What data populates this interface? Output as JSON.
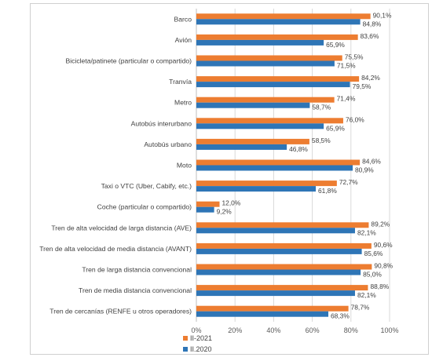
{
  "chart_data": {
    "type": "bar",
    "orientation": "horizontal",
    "categories": [
      "Barco",
      "Avión",
      "Bicicleta/patinete (particular o compartido)",
      "Tranvía",
      "Metro",
      "Autobús interurbano",
      "Autobús urbano",
      "Moto",
      "Taxi o VTC (Uber, Cabify, etc.)",
      "Coche (particular o compartido)",
      "Tren de alta velocidad de larga distancia (AVE)",
      "Tren de alta velocidad de media distancia (AVANT)",
      "Tren de larga distancia convencional",
      "Tren de media distancia convencional",
      "Tren de cercanías (RENFE u otros operadores)"
    ],
    "series": [
      {
        "name": "II-2021",
        "color": "#ED7D31",
        "values": [
          90.1,
          83.6,
          75.5,
          84.2,
          71.4,
          76.0,
          58.5,
          84.6,
          72.7,
          12.0,
          89.2,
          90.6,
          90.8,
          88.8,
          78.7
        ],
        "labels": [
          "90,1%",
          "83,6%",
          "75,5%",
          "84,2%",
          "71,4%",
          "76,0%",
          "58,5%",
          "84,6%",
          "72,7%",
          "12,0%",
          "89,2%",
          "90,6%",
          "90,8%",
          "88,8%",
          "78,7%"
        ]
      },
      {
        "name": "II.2020",
        "color": "#2E75B6",
        "values": [
          84.8,
          65.9,
          71.5,
          79.5,
          58.7,
          65.9,
          46.8,
          80.9,
          61.8,
          9.2,
          82.1,
          85.6,
          85.0,
          82.1,
          68.3
        ],
        "labels": [
          "84,8%",
          "65,9%",
          "71,5%",
          "79,5%",
          "58,7%",
          "65,9%",
          "46,8%",
          "80,9%",
          "61,8%",
          "9,2%",
          "82,1%",
          "85,6%",
          "85,0%",
          "82,1%",
          "68,3%"
        ]
      }
    ],
    "xlim": [
      0,
      100
    ],
    "xticks": [
      "0%",
      "20%",
      "40%",
      "60%",
      "80%",
      "100%"
    ],
    "grid": true,
    "legend_position": "bottom"
  },
  "legend": {
    "items": [
      {
        "label": "II-2021",
        "color": "#ED7D31"
      },
      {
        "label": "II.2020",
        "color": "#2E75B6"
      }
    ]
  }
}
